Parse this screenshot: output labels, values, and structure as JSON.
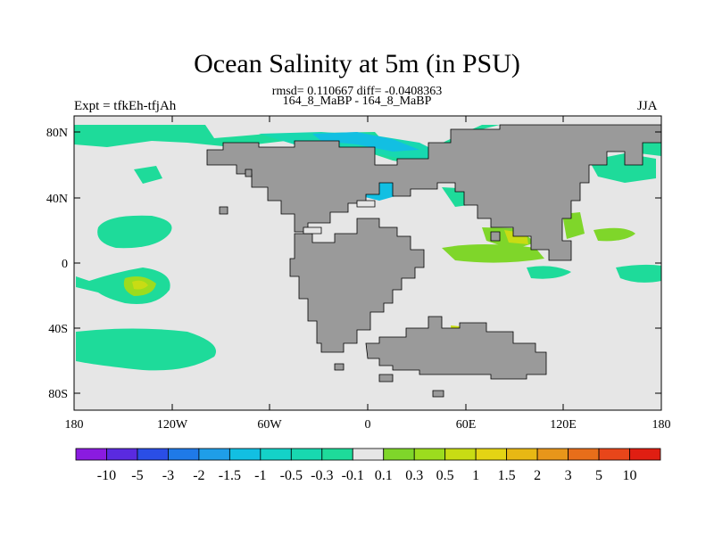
{
  "title": "Ocean Salinity at 5m (in PSU)",
  "stats": "rmsd= 0.110667 diff= -0.0408363",
  "subtitle": "164_8_MaBP - 164_8_MaBP",
  "left_label": "Expt = tfkEh-tfjAh",
  "right_label": "JJA",
  "lat_ticks": [
    "80N",
    "40N",
    "0",
    "40S",
    "80S"
  ],
  "lon_ticks": [
    "180",
    "120W",
    "60W",
    "0",
    "60E",
    "120E",
    "180"
  ],
  "colorbar": {
    "labels": [
      "-10",
      "-5",
      "-3",
      "-2",
      "-1.5",
      "-1",
      "-0.5",
      "-0.3",
      "-0.1",
      "0.1",
      "0.3",
      "0.5",
      "1",
      "1.5",
      "2",
      "3",
      "5",
      "10"
    ],
    "colors": [
      "#8a1be0",
      "#5a2ae0",
      "#2a4ee6",
      "#1f7ae8",
      "#1f9ee8",
      "#12bfe2",
      "#14d2c8",
      "#18d8b0",
      "#1edb9a",
      "#e6e6e6",
      "#7fd62a",
      "#9cdc1e",
      "#c8dc14",
      "#e4d414",
      "#e8b814",
      "#e8961a",
      "#e86e1a",
      "#e8461a",
      "#e01e12"
    ]
  },
  "colors": {
    "land": "#9a9a9a",
    "ocean": "#e6e6e6"
  }
}
